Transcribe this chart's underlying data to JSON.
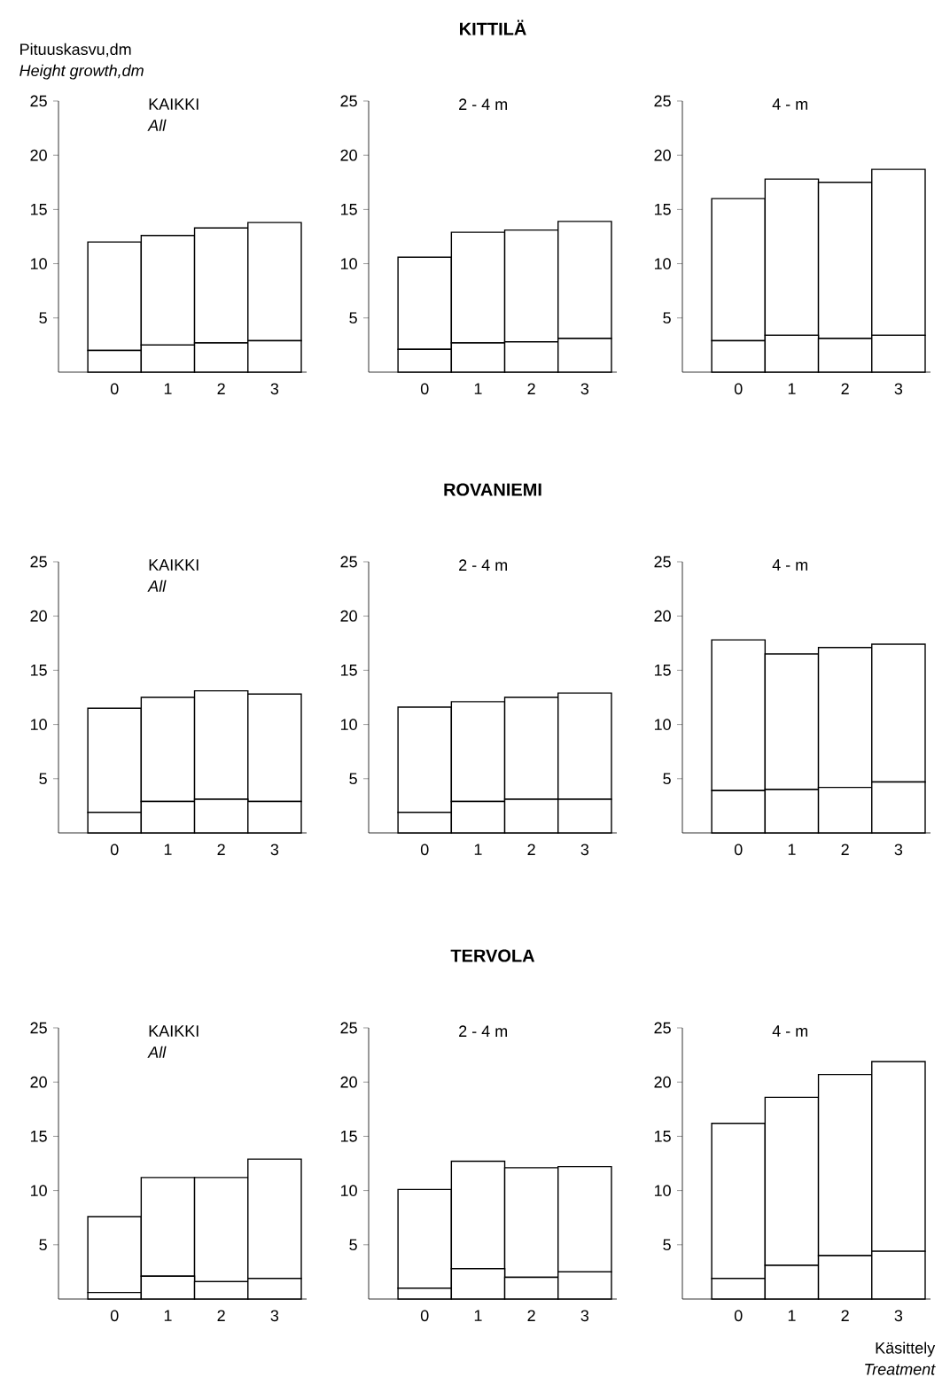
{
  "chart_data": [
    {
      "type": "bar",
      "stacked": true,
      "ylabel": "Pituuskasvu,dm",
      "categories": [
        "0",
        "1",
        "2",
        "3"
      ],
      "ylim": [
        0,
        25
      ],
      "yticks": [
        5,
        10,
        15,
        20,
        25
      ],
      "annotations": [
        "Height growth,dm",
        "KAIKKI",
        "All"
      ],
      "series": [
        {
          "color": "#ffffff",
          "values": [
            2.0,
            2.5,
            2.7,
            2.9
          ]
        },
        {
          "color": "#ffffff",
          "values": [
            10.0,
            10.1,
            10.6,
            10.9
          ]
        }
      ]
    },
    {
      "type": "bar",
      "stacked": true,
      "title": "KITTILÄ",
      "categories": [
        "0",
        "1",
        "2",
        "3"
      ],
      "ylim": [
        0,
        25
      ],
      "yticks": [
        5,
        10,
        15,
        20,
        25
      ],
      "annotations": [
        "2 - 4 m"
      ],
      "series": [
        {
          "color": "#ffffff",
          "values": [
            2.1,
            2.7,
            2.8,
            3.1
          ]
        },
        {
          "color": "#ffffff",
          "values": [
            8.5,
            10.2,
            10.3,
            10.8
          ]
        }
      ]
    },
    {
      "type": "bar",
      "stacked": true,
      "categories": [
        "0",
        "1",
        "2",
        "3"
      ],
      "ylim": [
        0,
        25
      ],
      "yticks": [
        5,
        10,
        15,
        20,
        25
      ],
      "annotations": [
        "4 - m"
      ],
      "series": [
        {
          "color": "#ffffff",
          "values": [
            2.9,
            3.4,
            3.1,
            3.4
          ]
        },
        {
          "color": "#ffffff",
          "values": [
            13.1,
            14.4,
            14.4,
            15.3
          ]
        }
      ]
    },
    {
      "type": "bar",
      "stacked": true,
      "categories": [
        "0",
        "1",
        "2",
        "3"
      ],
      "ylim": [
        0,
        25
      ],
      "yticks": [
        5,
        10,
        15,
        20,
        25
      ],
      "annotations": [
        "KAIKKI",
        "All"
      ],
      "series": [
        {
          "color": "#ffffff",
          "values": [
            1.9,
            2.9,
            3.1,
            2.9
          ]
        },
        {
          "color": "#ffffff",
          "values": [
            9.6,
            9.6,
            10.0,
            9.9
          ]
        }
      ]
    },
    {
      "type": "bar",
      "stacked": true,
      "title": "ROVANIEMI",
      "categories": [
        "0",
        "1",
        "2",
        "3"
      ],
      "ylim": [
        0,
        25
      ],
      "yticks": [
        5,
        10,
        15,
        20,
        25
      ],
      "annotations": [
        "2 - 4 m"
      ],
      "series": [
        {
          "color": "#ffffff",
          "values": [
            1.9,
            2.9,
            3.1,
            3.1
          ]
        },
        {
          "color": "#ffffff",
          "values": [
            9.7,
            9.2,
            9.4,
            9.8
          ]
        }
      ]
    },
    {
      "type": "bar",
      "stacked": true,
      "categories": [
        "0",
        "1",
        "2",
        "3"
      ],
      "ylim": [
        0,
        25
      ],
      "yticks": [
        5,
        10,
        15,
        20,
        25
      ],
      "annotations": [
        "4 - m"
      ],
      "series": [
        {
          "color": "#ffffff",
          "values": [
            3.9,
            4.0,
            4.2,
            4.7
          ]
        },
        {
          "color": "#ffffff",
          "values": [
            13.9,
            12.5,
            12.9,
            12.7
          ]
        }
      ]
    },
    {
      "type": "bar",
      "stacked": true,
      "categories": [
        "0",
        "1",
        "2",
        "3"
      ],
      "ylim": [
        0,
        25
      ],
      "yticks": [
        5,
        10,
        15,
        20,
        25
      ],
      "annotations": [
        "KAIKKI",
        "All"
      ],
      "series": [
        {
          "color": "#ffffff",
          "values": [
            0.6,
            2.1,
            1.6,
            1.9
          ]
        },
        {
          "color": "#ffffff",
          "values": [
            7.0,
            9.1,
            9.6,
            11.0
          ]
        }
      ]
    },
    {
      "type": "bar",
      "stacked": true,
      "title": "TERVOLA",
      "categories": [
        "0",
        "1",
        "2",
        "3"
      ],
      "ylim": [
        0,
        25
      ],
      "yticks": [
        5,
        10,
        15,
        20,
        25
      ],
      "annotations": [
        "2 - 4 m"
      ],
      "series": [
        {
          "color": "#ffffff",
          "values": [
            1.0,
            2.8,
            2.0,
            2.5
          ]
        },
        {
          "color": "#ffffff",
          "values": [
            9.1,
            9.9,
            10.1,
            9.7
          ]
        }
      ]
    },
    {
      "type": "bar",
      "stacked": true,
      "xlabel": "Käsittely",
      "categories": [
        "0",
        "1",
        "2",
        "3"
      ],
      "ylim": [
        0,
        25
      ],
      "yticks": [
        5,
        10,
        15,
        20,
        25
      ],
      "annotations": [
        "4 - m",
        "Treatment"
      ],
      "series": [
        {
          "color": "#ffffff",
          "values": [
            1.9,
            3.1,
            4.0,
            4.4
          ]
        },
        {
          "color": "#ffffff",
          "values": [
            14.3,
            15.5,
            16.7,
            17.5
          ]
        }
      ]
    }
  ]
}
